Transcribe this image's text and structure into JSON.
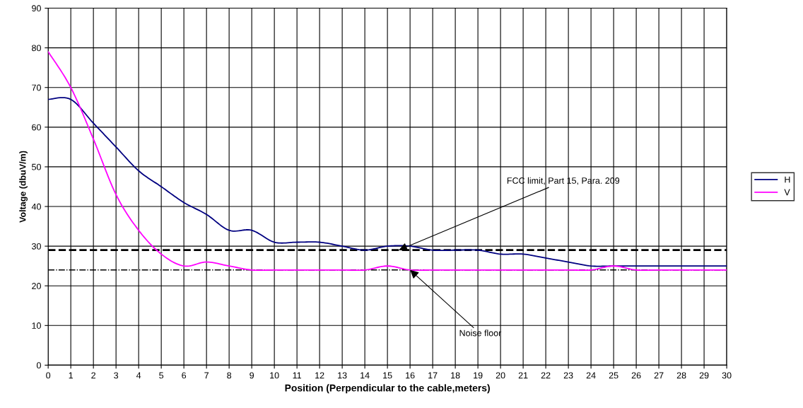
{
  "chart_data": {
    "type": "line",
    "xlabel": "Position (Perpendicular to the cable,meters)",
    "ylabel": "Voltage (dbuV/m)",
    "x": [
      0,
      1,
      2,
      3,
      4,
      5,
      6,
      7,
      8,
      9,
      10,
      11,
      12,
      13,
      14,
      15,
      16,
      17,
      18,
      19,
      20,
      21,
      22,
      23,
      24,
      25,
      26,
      27,
      28,
      29,
      30
    ],
    "series": [
      {
        "name": "H",
        "color": "#000080",
        "values": [
          67,
          67,
          61,
          55,
          49,
          45,
          41,
          38,
          34,
          34,
          31,
          31,
          31,
          30,
          29,
          30,
          30,
          29,
          29,
          29,
          28,
          28,
          27,
          26,
          25,
          25,
          25,
          25,
          25,
          25,
          25
        ]
      },
      {
        "name": "V",
        "color": "#ff00ff",
        "values": [
          79,
          70,
          57,
          43,
          34,
          28,
          25,
          26,
          25,
          24,
          24,
          24,
          24,
          24,
          24,
          25,
          24,
          24,
          24,
          24,
          24,
          24,
          24,
          24,
          24,
          25,
          24,
          24,
          24,
          24,
          24
        ]
      }
    ],
    "xlim": [
      0,
      30
    ],
    "xticks": [
      0,
      1,
      2,
      3,
      4,
      5,
      6,
      7,
      8,
      9,
      10,
      11,
      12,
      13,
      14,
      15,
      16,
      17,
      18,
      19,
      20,
      21,
      22,
      23,
      24,
      25,
      26,
      27,
      28,
      29,
      30
    ],
    "ylim": [
      0,
      90
    ],
    "yticks": [
      0,
      10,
      20,
      30,
      40,
      50,
      60,
      70,
      80,
      90
    ],
    "ref_lines": [
      {
        "axis": "y",
        "value": 29,
        "color": "#000000",
        "line_style": "dashed"
      },
      {
        "axis": "y",
        "value": 24,
        "color": "#000000",
        "line_style": "dashdot"
      }
    ],
    "annotations": [
      {
        "text": "FCC limit, Part 15, Para. 209",
        "x": 15.5,
        "y": 29
      },
      {
        "text": "Noise floor",
        "x": 16,
        "y": 24
      }
    ],
    "grid": true,
    "legend": "right",
    "marker": "none",
    "line_style": "solid"
  }
}
